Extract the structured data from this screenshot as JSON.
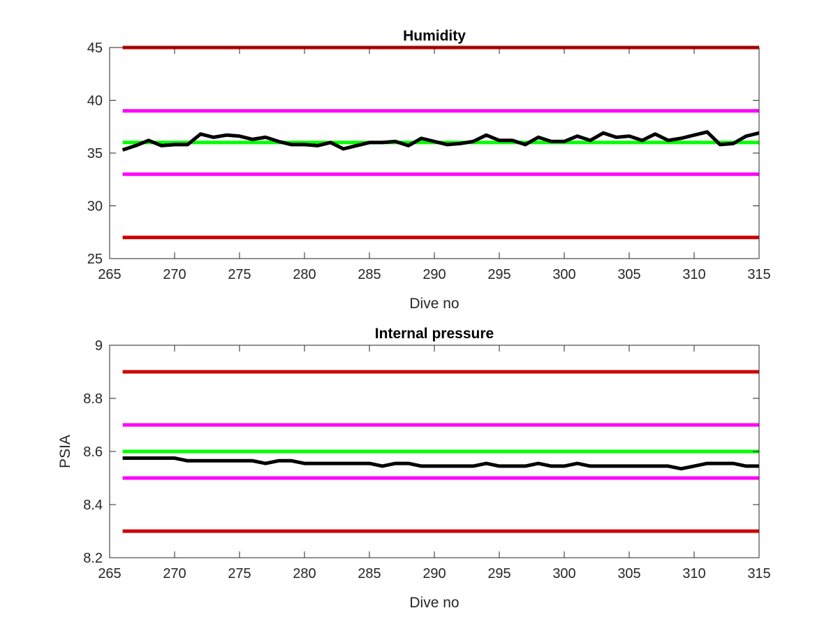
{
  "colors": {
    "red": "#cc0000",
    "magenta": "#ff00ff",
    "green": "#00ff00",
    "black": "#000000",
    "axes": "#262626"
  },
  "chart_data": [
    {
      "type": "line",
      "title": "Humidity",
      "xlabel": "Dive no",
      "ylabel": "",
      "xlim": [
        265,
        315
      ],
      "ylim": [
        25,
        45
      ],
      "xticks": [
        265,
        270,
        275,
        280,
        285,
        290,
        295,
        300,
        305,
        310,
        315
      ],
      "yticks": [
        25,
        30,
        35,
        40,
        45
      ],
      "grid": false,
      "legend": "none",
      "reference_lines": [
        {
          "y": 45,
          "color": "red"
        },
        {
          "y": 39,
          "color": "magenta"
        },
        {
          "y": 36,
          "color": "green"
        },
        {
          "y": 33,
          "color": "magenta"
        },
        {
          "y": 27,
          "color": "red"
        }
      ],
      "reference_x_range": [
        266,
        315
      ],
      "series": [
        {
          "color": "black",
          "x": [
            266,
            267,
            268,
            269,
            270,
            271,
            272,
            273,
            274,
            275,
            276,
            277,
            278,
            279,
            280,
            281,
            282,
            283,
            284,
            285,
            286,
            287,
            288,
            289,
            290,
            291,
            292,
            293,
            294,
            295,
            296,
            297,
            298,
            299,
            300,
            301,
            302,
            303,
            304,
            305,
            306,
            307,
            308,
            309,
            310,
            311,
            312,
            313,
            314,
            315
          ],
          "y": [
            35.3,
            35.7,
            36.2,
            35.7,
            35.8,
            35.8,
            36.8,
            36.5,
            36.7,
            36.6,
            36.3,
            36.5,
            36.1,
            35.8,
            35.8,
            35.7,
            36.0,
            35.4,
            35.7,
            36.0,
            36.0,
            36.1,
            35.7,
            36.4,
            36.1,
            35.8,
            35.9,
            36.1,
            36.7,
            36.2,
            36.2,
            35.8,
            36.5,
            36.1,
            36.1,
            36.6,
            36.2,
            36.9,
            36.5,
            36.6,
            36.2,
            36.8,
            36.2,
            36.4,
            36.7,
            37.0,
            35.8,
            35.9,
            36.6,
            36.9
          ]
        }
      ]
    },
    {
      "type": "line",
      "title": "Internal pressure",
      "xlabel": "Dive no",
      "ylabel": "PSIA",
      "xlim": [
        265,
        315
      ],
      "ylim": [
        8.2,
        9.0
      ],
      "xticks": [
        265,
        270,
        275,
        280,
        285,
        290,
        295,
        300,
        305,
        310,
        315
      ],
      "yticks": [
        "8.2",
        "8.4",
        "8.6",
        "8.8",
        "9"
      ],
      "grid": false,
      "legend": "none",
      "reference_lines": [
        {
          "y": 8.9,
          "color": "red"
        },
        {
          "y": 8.7,
          "color": "magenta"
        },
        {
          "y": 8.6,
          "color": "green"
        },
        {
          "y": 8.5,
          "color": "magenta"
        },
        {
          "y": 8.3,
          "color": "red"
        }
      ],
      "reference_x_range": [
        266,
        315
      ],
      "series": [
        {
          "color": "black",
          "x": [
            266,
            267,
            268,
            269,
            270,
            271,
            272,
            273,
            274,
            275,
            276,
            277,
            278,
            279,
            280,
            281,
            282,
            283,
            284,
            285,
            286,
            287,
            288,
            289,
            290,
            291,
            292,
            293,
            294,
            295,
            296,
            297,
            298,
            299,
            300,
            301,
            302,
            303,
            304,
            305,
            306,
            307,
            308,
            309,
            310,
            311,
            312,
            313,
            314,
            315
          ],
          "y": [
            8.575,
            8.575,
            8.575,
            8.575,
            8.575,
            8.565,
            8.565,
            8.565,
            8.565,
            8.565,
            8.565,
            8.555,
            8.565,
            8.565,
            8.555,
            8.555,
            8.555,
            8.555,
            8.555,
            8.555,
            8.545,
            8.555,
            8.555,
            8.545,
            8.545,
            8.545,
            8.545,
            8.545,
            8.555,
            8.545,
            8.545,
            8.545,
            8.555,
            8.545,
            8.545,
            8.555,
            8.545,
            8.545,
            8.545,
            8.545,
            8.545,
            8.545,
            8.545,
            8.535,
            8.545,
            8.555,
            8.555,
            8.555,
            8.545,
            8.545
          ]
        }
      ]
    }
  ]
}
